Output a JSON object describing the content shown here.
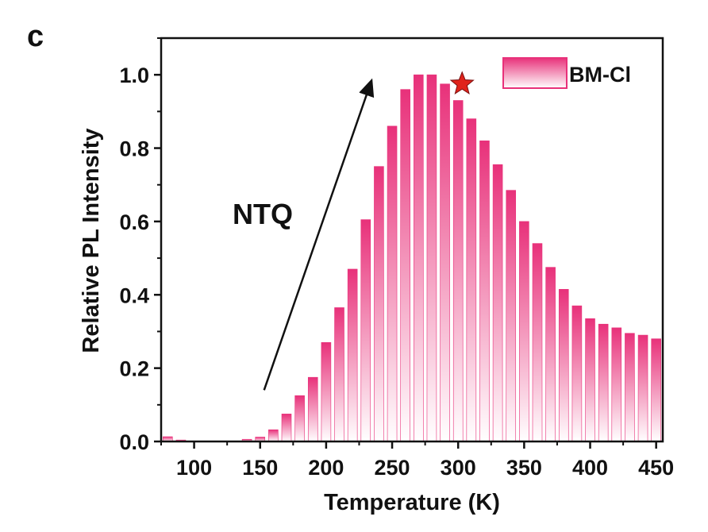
{
  "panel_label": "c",
  "chart_data": {
    "type": "bar",
    "xlabel": "Temperature (K)",
    "ylabel": "Relative PL Intensity",
    "xlim": [
      75,
      455
    ],
    "ylim": [
      0,
      1.1
    ],
    "xticks": [
      100,
      150,
      200,
      250,
      300,
      350,
      400,
      450
    ],
    "xtick_labels": [
      "100",
      "150",
      "200",
      "250",
      "300",
      "350",
      "400",
      "450"
    ],
    "yticks": [
      0.0,
      0.2,
      0.4,
      0.6,
      0.8,
      1.0
    ],
    "ytick_labels": [
      "0.0",
      "0.2",
      "0.4",
      "0.6",
      "0.8",
      "1.0"
    ],
    "legend": {
      "label": "BM-Cl",
      "position": "top-right"
    },
    "colors": {
      "bar": "#e8317a",
      "bar_light": "#ffffff",
      "star": "#e0231b",
      "arrow": "#111111"
    },
    "grid": false,
    "series": [
      {
        "name": "BM-Cl",
        "x": [
          80,
          90,
          100,
          110,
          120,
          130,
          140,
          150,
          160,
          170,
          180,
          190,
          200,
          210,
          220,
          230,
          240,
          250,
          260,
          270,
          280,
          290,
          300,
          310,
          320,
          330,
          340,
          350,
          360,
          370,
          380,
          390,
          400,
          410,
          420,
          430,
          440,
          450
        ],
        "values": [
          0.013,
          0.004,
          0.0,
          0.0,
          0.0,
          0.0,
          0.006,
          0.012,
          0.032,
          0.075,
          0.125,
          0.175,
          0.27,
          0.365,
          0.47,
          0.605,
          0.75,
          0.86,
          0.96,
          1.0,
          1.0,
          0.975,
          0.93,
          0.88,
          0.82,
          0.755,
          0.685,
          0.6,
          0.54,
          0.475,
          0.415,
          0.37,
          0.335,
          0.32,
          0.31,
          0.295,
          0.29,
          0.28
        ]
      }
    ],
    "annotations": [
      {
        "type": "arrow",
        "label": "NTQ",
        "from": [
          153,
          0.14
        ],
        "to": [
          233,
          0.97
        ]
      },
      {
        "type": "marker",
        "shape": "star",
        "x": 303,
        "y": 0.975
      }
    ]
  }
}
